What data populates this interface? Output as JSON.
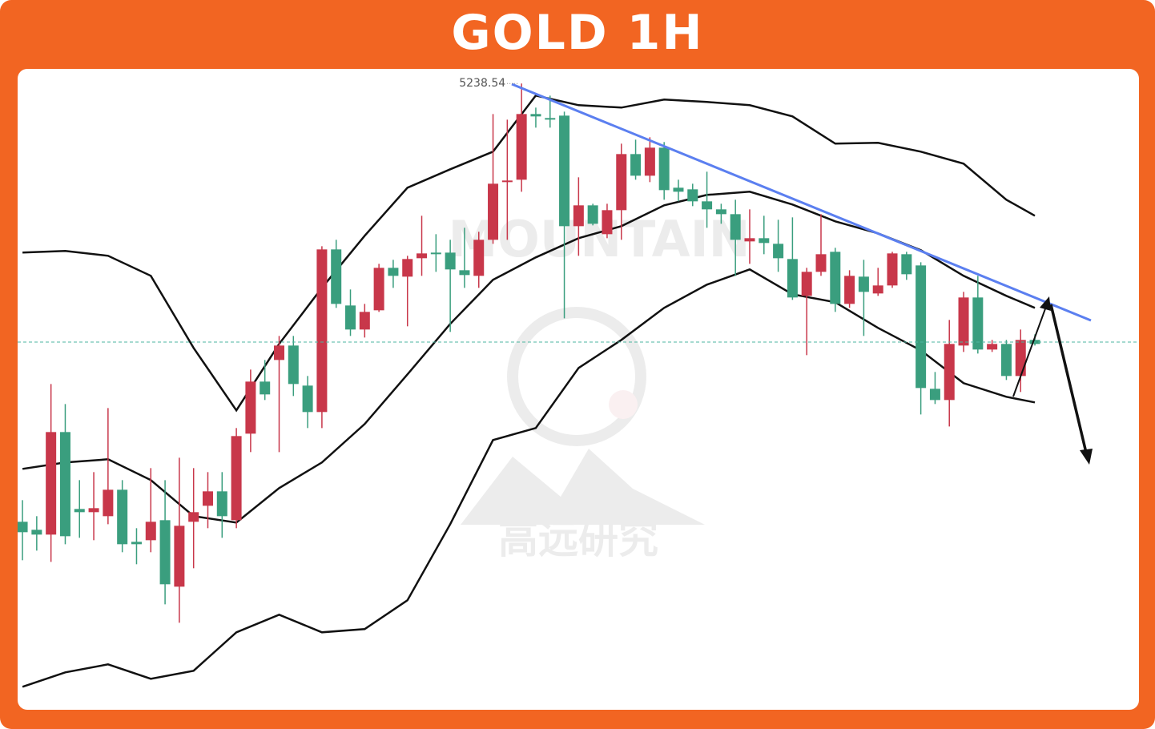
{
  "chart_data": {
    "type": "candlestick",
    "title": "GOLD 1H",
    "watermark": [
      "MOUNTAIN",
      "高远研究"
    ],
    "xlim": [
      -0.34,
      78.3
    ],
    "ylim": [
      5004,
      5244
    ],
    "up_color": "#c8374a",
    "down_color": "#3a9e7e",
    "open": [
      5074.4,
      5071.4,
      5069.6,
      5108,
      5079.2,
      5078,
      5076.5,
      5086.4,
      5066.9,
      5067.5,
      5075,
      5050.1,
      5074.4,
      5080.4,
      5085.8,
      5075,
      5107.4,
      5126.9,
      5135,
      5140.4,
      5125.4,
      5115.5,
      5176.4,
      5155.4,
      5146.4,
      5153.6,
      5169.5,
      5166.2,
      5173.1,
      5175.2,
      5175.2,
      5168.6,
      5166.5,
      5180,
      5201.6,
      5202.5,
      5227.1,
      5225.6,
      5226.5,
      5185.1,
      5192.9,
      5182.1,
      5191.1,
      5212.1,
      5204,
      5214.5,
      5199.5,
      5198.9,
      5194.4,
      5191.4,
      5189.6,
      5179.4,
      5180.6,
      5178.5,
      5172.8,
      5159,
      5168,
      5175.5,
      5156,
      5166.2,
      5159.9,
      5162.9,
      5174.6,
      5170.4,
      5124.2,
      5120,
      5140.4,
      5158.4,
      5138.9,
      5141,
      5129,
      5142.5
    ],
    "high": [
      5082.5,
      5076.5,
      5126,
      5118.5,
      5090,
      5093,
      5117,
      5090,
      5072,
      5094.5,
      5090,
      5098.4,
      5094.5,
      5093,
      5093,
      5109.5,
      5131.4,
      5135,
      5144,
      5144,
      5129,
      5177.6,
      5180,
      5161.4,
      5156,
      5171,
      5172.5,
      5174,
      5189,
      5182.1,
      5180,
      5184.5,
      5183,
      5227.1,
      5225,
      5238.54,
      5229.5,
      5234,
      5228,
      5203.4,
      5193.5,
      5193.5,
      5216,
      5217.5,
      5218.4,
      5216.6,
      5202.5,
      5201,
      5205.5,
      5193.5,
      5195,
      5191.4,
      5189,
      5187.5,
      5188.4,
      5169.5,
      5189.6,
      5177,
      5168.6,
      5172.5,
      5169.5,
      5175.5,
      5175.5,
      5171.6,
      5130.5,
      5150,
      5160.5,
      5166.5,
      5142.5,
      5142.5,
      5146.4,
      5144.6
    ],
    "low": [
      5060,
      5063.6,
      5059.4,
      5066,
      5068.4,
      5067.5,
      5073.5,
      5063,
      5058.5,
      5063,
      5043.5,
      5036.6,
      5057,
      5072,
      5068.4,
      5072,
      5100.5,
      5120,
      5100.5,
      5121.5,
      5109.5,
      5109.5,
      5154.5,
      5144,
      5143.4,
      5153,
      5162,
      5147.6,
      5166.5,
      5168,
      5145.5,
      5162,
      5162,
      5178.5,
      5180,
      5198,
      5222,
      5222,
      5150.6,
      5174,
      5185.4,
      5180.6,
      5180,
      5202.5,
      5201.6,
      5195,
      5194.4,
      5192.6,
      5184.5,
      5186,
      5166.5,
      5171,
      5174.6,
      5168,
      5157.5,
      5136.8,
      5166.5,
      5153,
      5154.5,
      5144,
      5159,
      5162,
      5165,
      5114.6,
      5118.5,
      5110.1,
      5138,
      5137.4,
      5138,
      5127.5,
      5123,
      5140.4
    ],
    "close": [
      5070.5,
      5069.6,
      5108,
      5069,
      5078,
      5079.5,
      5086.4,
      5066,
      5066,
      5074.4,
      5051,
      5072.9,
      5078,
      5085.8,
      5076.5,
      5106.5,
      5126.9,
      5122.1,
      5140.4,
      5126,
      5115.5,
      5176.4,
      5156,
      5146.4,
      5153,
      5169.5,
      5166.5,
      5172.8,
      5174.9,
      5174.6,
      5168.9,
      5166.8,
      5180,
      5201,
      5202.2,
      5227.1,
      5226.2,
      5225,
      5185.1,
      5192.9,
      5186,
      5191.1,
      5212.1,
      5204,
      5214.5,
      5198.6,
      5198,
      5194.4,
      5191.4,
      5189.6,
      5180,
      5180.6,
      5178.8,
      5173.1,
      5158.4,
      5168,
      5174.6,
      5156,
      5166.5,
      5160.5,
      5162.9,
      5174.9,
      5167.1,
      5124.5,
      5120,
      5141,
      5158.4,
      5138.9,
      5141,
      5129,
      5142.5,
      5141
    ],
    "high_marker": 5238.54,
    "bands": [
      {
        "color": "#111111",
        "x": [
          0,
          3,
          6,
          9,
          12,
          15,
          18,
          21,
          24,
          27,
          30,
          33,
          36,
          39,
          42,
          45,
          48,
          51,
          54,
          57,
          60,
          63,
          66,
          69,
          71
        ],
        "values": [
          5175.2,
          5175.8,
          5174,
          5166.5,
          5139.5,
          5116.1,
          5141,
          5162,
          5181.5,
          5199.5,
          5206.4,
          5213,
          5234,
          5230.4,
          5229.5,
          5232.5,
          5231.6,
          5230.4,
          5226.2,
          5216,
          5216.3,
          5213,
          5208.5,
          5195,
          5189
        ]
      },
      {
        "color": "#111111",
        "x": [
          0,
          3,
          6,
          9,
          12,
          15,
          18,
          21,
          24,
          27,
          30,
          33,
          36,
          39,
          42,
          45,
          48,
          51,
          54,
          57,
          60,
          63,
          66,
          69,
          71
        ],
        "values": [
          5094.2,
          5096.6,
          5097.8,
          5090,
          5076.5,
          5074.1,
          5087,
          5096.6,
          5111,
          5129.6,
          5148.5,
          5165,
          5173.4,
          5180.6,
          5185.1,
          5192.9,
          5196.8,
          5198,
          5193.2,
          5186.9,
          5182.4,
          5176.1,
          5166.5,
          5159,
          5154.5
        ]
      },
      {
        "color": "#111111",
        "x": [
          0,
          3,
          6,
          9,
          12,
          15,
          18,
          21,
          24,
          27,
          30,
          33,
          36,
          39,
          42,
          45,
          48,
          51,
          54,
          57,
          60,
          63,
          66,
          69,
          71
        ],
        "values": [
          5012.6,
          5018,
          5021,
          5015.6,
          5018.6,
          5033,
          5039.6,
          5033,
          5034.2,
          5045,
          5073.5,
          5105,
          5109.5,
          5132,
          5142.5,
          5154.5,
          5163.2,
          5168.9,
          5159.6,
          5156.6,
          5147,
          5138.6,
          5126.3,
          5121.2,
          5119.1
        ]
      }
    ]
  }
}
